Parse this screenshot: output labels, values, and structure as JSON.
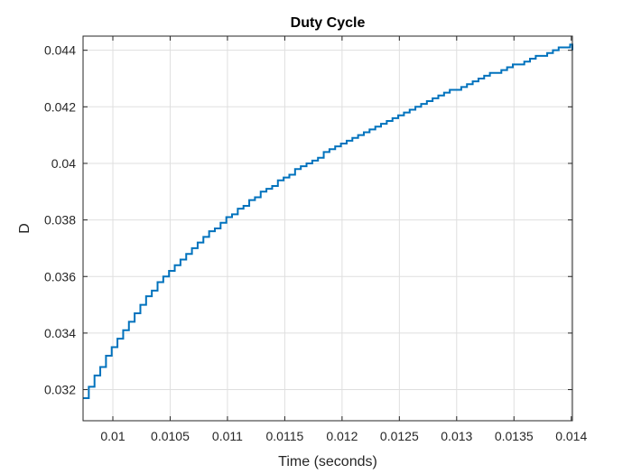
{
  "chart_data": {
    "type": "line",
    "title": "Duty Cycle",
    "xlabel": "Time (seconds)",
    "ylabel": "D",
    "xlim": [
      0.00974,
      0.01401
    ],
    "ylim": [
      0.0309,
      0.0445
    ],
    "grid": true,
    "xticks": [
      0.01,
      0.0105,
      0.011,
      0.0115,
      0.012,
      0.0125,
      0.013,
      0.0135,
      0.014
    ],
    "xtick_labels": [
      "0.01",
      "0.0105",
      "0.011",
      "0.0115",
      "0.012",
      "0.0125",
      "0.013",
      "0.0135",
      "0.014"
    ],
    "yticks": [
      0.032,
      0.034,
      0.036,
      0.038,
      0.04,
      0.042,
      0.044
    ],
    "ytick_labels": [
      "0.032",
      "0.034",
      "0.036",
      "0.038",
      "0.04",
      "0.042",
      "0.044"
    ],
    "series": [
      {
        "color": "#0072BD",
        "step": true,
        "x": [
          0.00974,
          0.00979,
          0.00984,
          0.00989,
          0.00994,
          0.00999,
          0.01004,
          0.01009,
          0.01014,
          0.01019,
          0.01024,
          0.01029,
          0.01034,
          0.01039,
          0.01044,
          0.01049,
          0.01054,
          0.01059,
          0.01064,
          0.01069,
          0.01074,
          0.01079,
          0.01084,
          0.01089,
          0.01094,
          0.01099,
          0.01104,
          0.01109,
          0.01114,
          0.01119,
          0.01124,
          0.01129,
          0.01134,
          0.01139,
          0.01144,
          0.01149,
          0.01154,
          0.01159,
          0.01164,
          0.01169,
          0.01174,
          0.01179,
          0.01184,
          0.01189,
          0.01194,
          0.01199,
          0.01204,
          0.01209,
          0.01214,
          0.01219,
          0.01224,
          0.01229,
          0.01234,
          0.01239,
          0.01244,
          0.01249,
          0.01254,
          0.01259,
          0.01264,
          0.01269,
          0.01274,
          0.01279,
          0.01284,
          0.01289,
          0.01294,
          0.01299,
          0.01304,
          0.01309,
          0.01314,
          0.01319,
          0.01324,
          0.01329,
          0.01334,
          0.01339,
          0.01344,
          0.01349,
          0.01354,
          0.01359,
          0.01364,
          0.01369,
          0.01374,
          0.01379,
          0.01384,
          0.01389,
          0.01394,
          0.01399,
          0.01401
        ],
        "y": [
          0.0317,
          0.0321,
          0.0325,
          0.0328,
          0.0332,
          0.0335,
          0.0338,
          0.0341,
          0.0344,
          0.0347,
          0.035,
          0.0353,
          0.0355,
          0.0358,
          0.036,
          0.0362,
          0.0364,
          0.0366,
          0.0368,
          0.037,
          0.0372,
          0.0374,
          0.0376,
          0.0377,
          0.0379,
          0.0381,
          0.0382,
          0.0384,
          0.0385,
          0.0387,
          0.0388,
          0.039,
          0.0391,
          0.0392,
          0.0394,
          0.0395,
          0.0396,
          0.0398,
          0.0399,
          0.04,
          0.0401,
          0.0402,
          0.0404,
          0.0405,
          0.0406,
          0.0407,
          0.0408,
          0.0409,
          0.041,
          0.0411,
          0.0412,
          0.0413,
          0.0414,
          0.0415,
          0.0416,
          0.0417,
          0.0418,
          0.0419,
          0.042,
          0.0421,
          0.0422,
          0.0423,
          0.0424,
          0.0425,
          0.0426,
          0.0426,
          0.0427,
          0.0428,
          0.0429,
          0.043,
          0.0431,
          0.0432,
          0.0432,
          0.0433,
          0.0434,
          0.0435,
          0.0435,
          0.0436,
          0.0437,
          0.0438,
          0.0438,
          0.0439,
          0.044,
          0.0441,
          0.0441,
          0.0442,
          0.044
        ]
      }
    ]
  }
}
